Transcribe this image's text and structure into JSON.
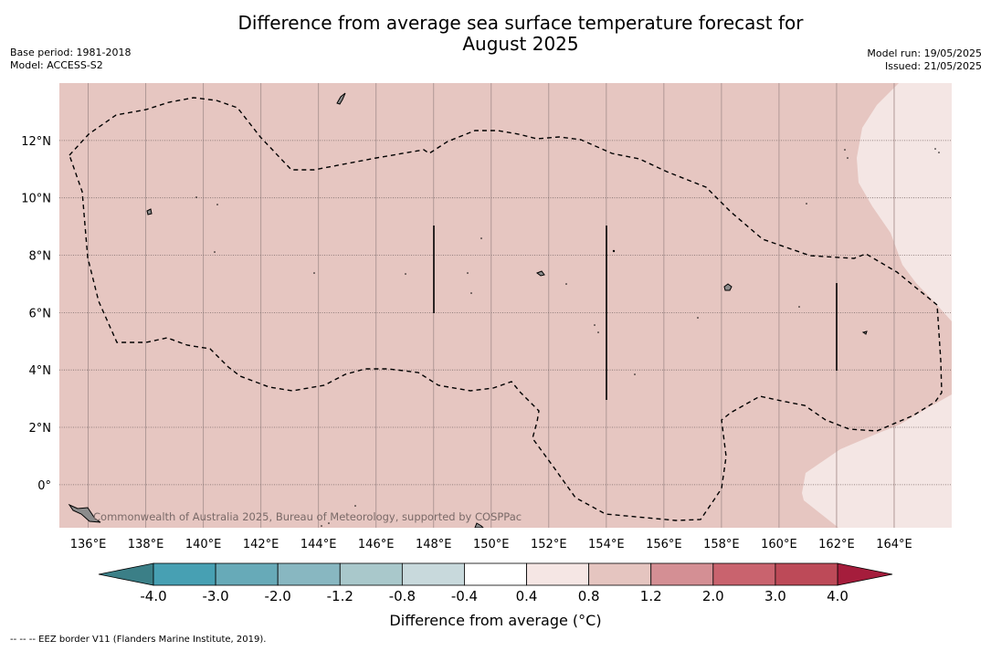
{
  "title_line1": "Difference from average sea surface temperature forecast for",
  "title_line2": "August 2025",
  "meta_left": [
    "Base period: 1981-2018",
    "Model: ACCESS-S2"
  ],
  "meta_right": [
    "Model run: 19/05/2025",
    "Issued: 21/05/2025"
  ],
  "watermark": "Commonwealth of Australia 2025, Bureau of Meteorology, supported by COSPPac",
  "map": {
    "lon_ticks": [
      "136°E",
      "138°E",
      "140°E",
      "142°E",
      "144°E",
      "146°E",
      "148°E",
      "150°E",
      "152°E",
      "154°E",
      "156°E",
      "158°E",
      "160°E",
      "162°E",
      "164°E"
    ],
    "lat_ticks": [
      "12°N",
      "10°N",
      "8°N",
      "6°N",
      "4°N",
      "2°N",
      "0°"
    ],
    "lon_values": [
      136,
      138,
      140,
      142,
      144,
      146,
      148,
      150,
      152,
      154,
      156,
      158,
      160,
      162,
      164
    ],
    "lat_values": [
      12,
      10,
      8,
      6,
      4,
      2,
      0
    ],
    "lon_range": [
      135,
      166
    ],
    "lat_range": [
      -1.5,
      14
    ],
    "background_color": "#e6c6c1",
    "light_region_color": "#f4e6e4"
  },
  "colorbar": {
    "ticks": [
      "-4.0",
      "-3.0",
      "-2.0",
      "-1.2",
      "-0.8",
      "-0.4",
      "0.4",
      "0.8",
      "1.2",
      "2.0",
      "3.0",
      "4.0"
    ],
    "colors": [
      "#47a0b3",
      "#67aab8",
      "#88b7c1",
      "#a9c8cb",
      "#c8d9dc",
      "#ffffff",
      "#f5e6e4",
      "#e5c5c0",
      "#d48f94",
      "#c9636e",
      "#bd4a58"
    ],
    "under_color": "#3b7f87",
    "over_color": "#a51d3c",
    "label": "Difference from average (°C)"
  },
  "footnote": "--  --  -- EEZ border V11 (Flanders Marine Institute, 2019)."
}
